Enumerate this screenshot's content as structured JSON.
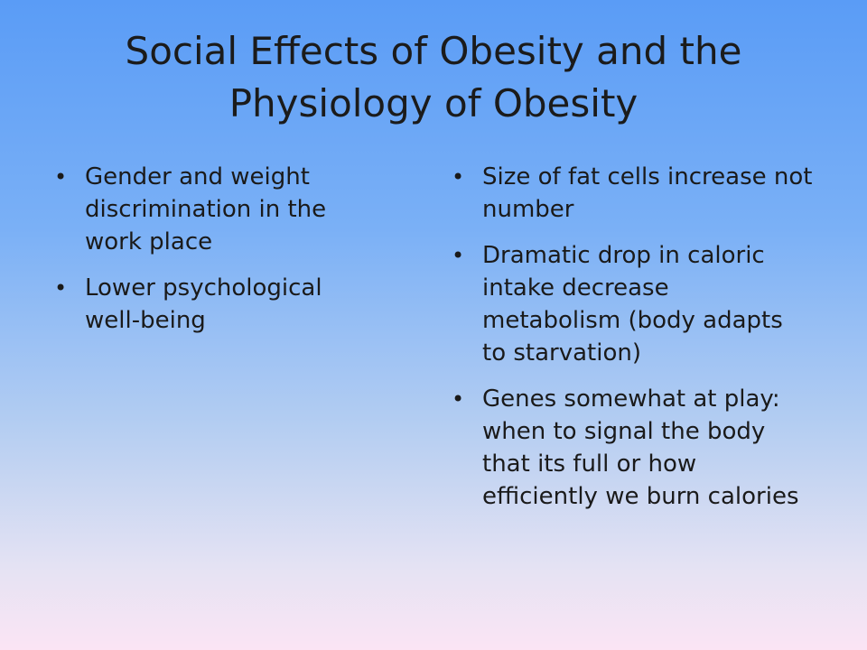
{
  "slide": {
    "title_line1": "Social Effects of Obesity and the",
    "title_line2": "Physiology of Obesity",
    "bullet_char": "•",
    "left_items": [
      "Gender and weight discrimination in the work place",
      "Lower psychological well-being"
    ],
    "right_items": [
      "Size of fat cells increase not number",
      "Dramatic drop in caloric intake decrease metabolism (body adapts to starvation)",
      "Genes somewhat at play: when to signal the body that its full or how efficiently we burn calories"
    ]
  }
}
